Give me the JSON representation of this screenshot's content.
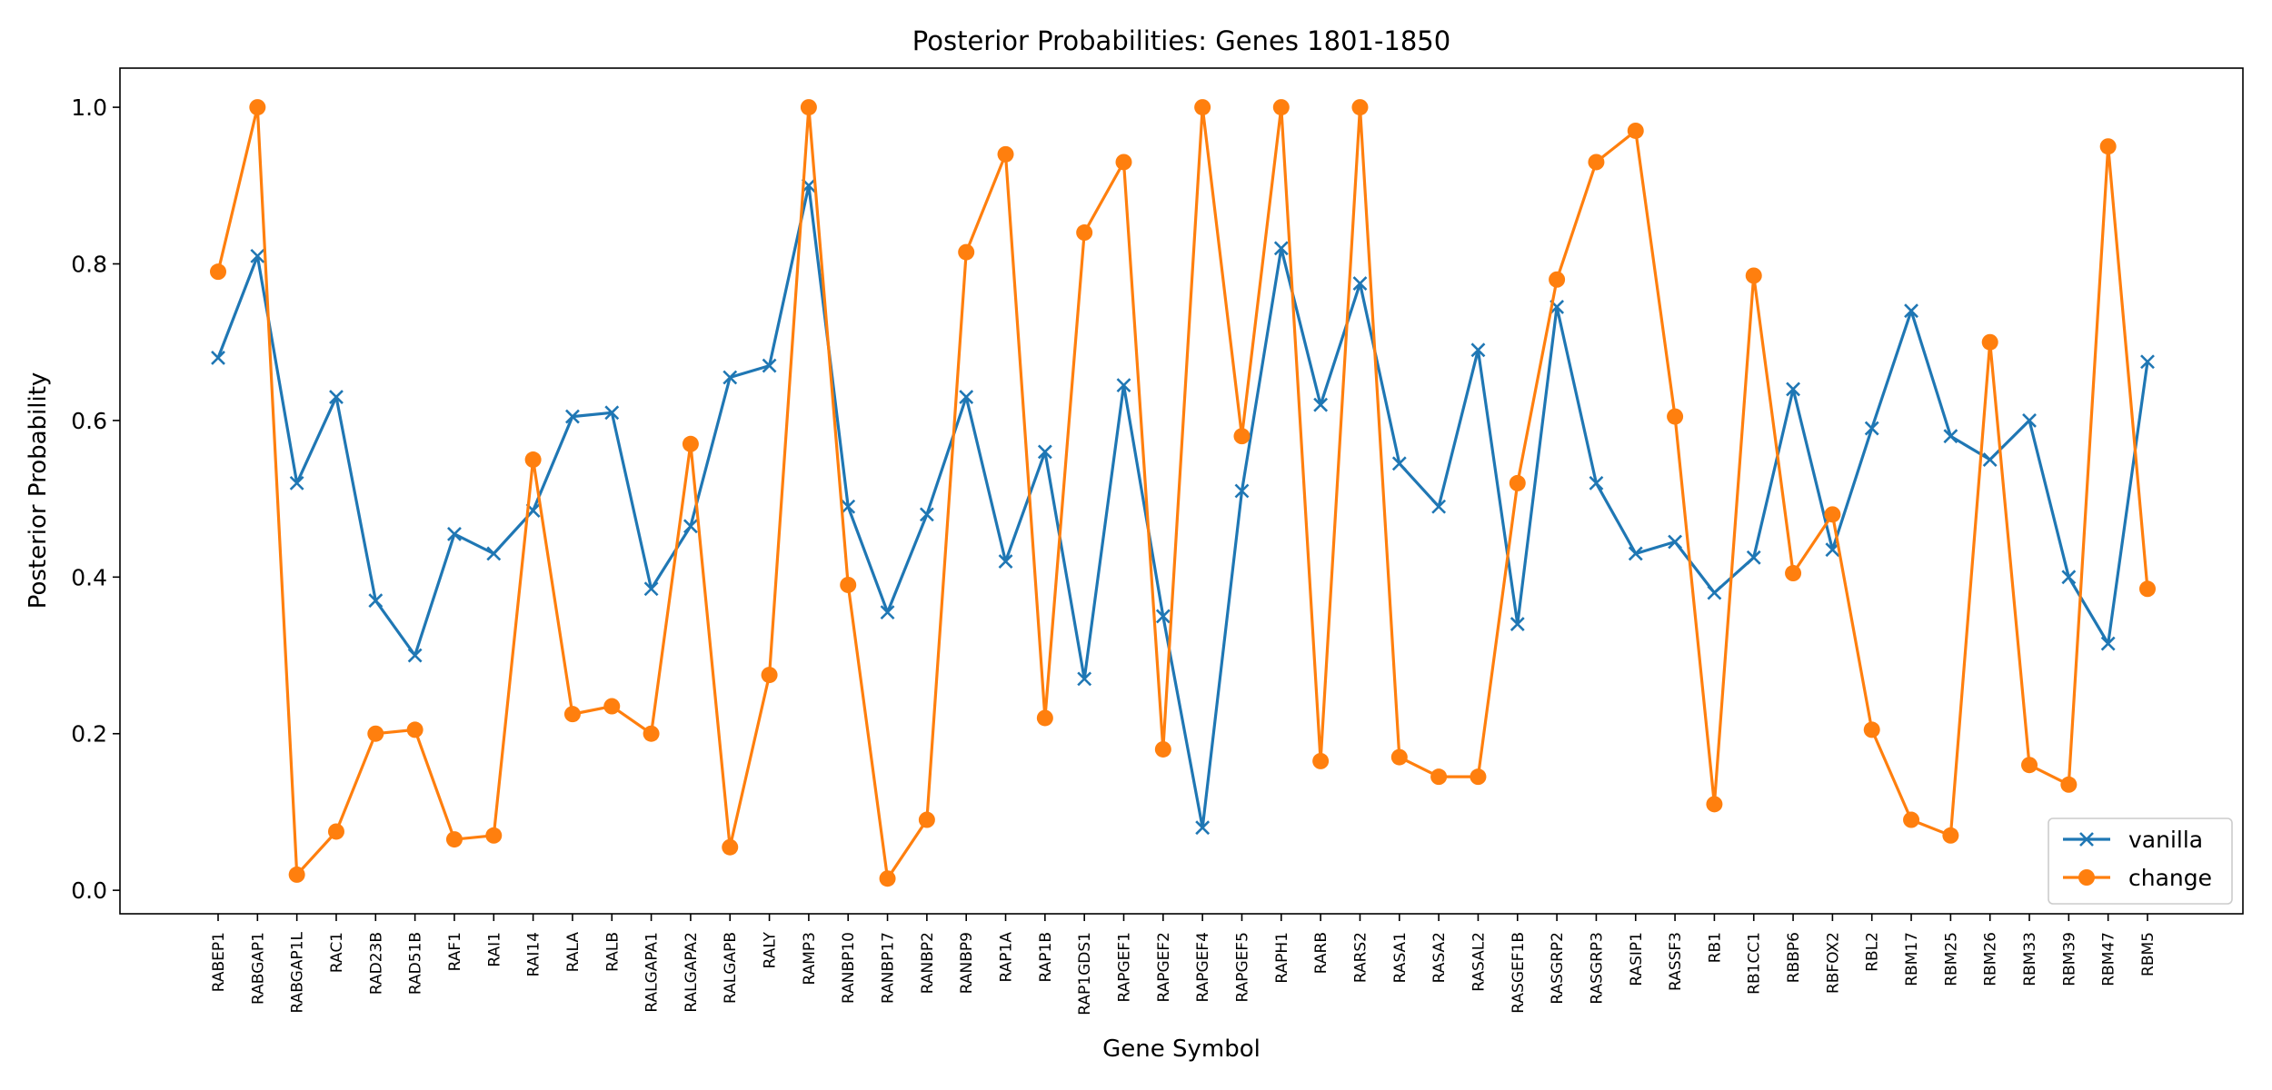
{
  "chart_data": {
    "type": "line",
    "title": "Posterior Probabilities: Genes 1801-1850",
    "xlabel": "Gene Symbol",
    "ylabel": "Posterior Probability",
    "ylim": [
      -0.03,
      1.05
    ],
    "yticks": [
      "0.0",
      "0.2",
      "0.4",
      "0.6",
      "0.8",
      "1.0"
    ],
    "grid": false,
    "legend_position": "lower right",
    "categories": [
      "RABEP1",
      "RABGAP1",
      "RABGAP1L",
      "RAC1",
      "RAD23B",
      "RAD51B",
      "RAF1",
      "RAI1",
      "RAI14",
      "RALA",
      "RALB",
      "RALGAPA1",
      "RALGAPA2",
      "RALGAPB",
      "RALY",
      "RAMP3",
      "RANBP10",
      "RANBP17",
      "RANBP2",
      "RANBP9",
      "RAP1A",
      "RAP1B",
      "RAP1GDS1",
      "RAPGEF1",
      "RAPGEF2",
      "RAPGEF4",
      "RAPGEF5",
      "RAPH1",
      "RARB",
      "RARS2",
      "RASA1",
      "RASA2",
      "RASAL2",
      "RASGEF1B",
      "RASGRP2",
      "RASGRP3",
      "RASIP1",
      "RASSF3",
      "RB1",
      "RB1CC1",
      "RBBP6",
      "RBFOX2",
      "RBL2",
      "RBM17",
      "RBM25",
      "RBM26",
      "RBM33",
      "RBM39",
      "RBM47",
      "RBM5"
    ],
    "series": [
      {
        "name": "vanilla",
        "color": "#1f77b4",
        "marker": "x",
        "values": [
          0.68,
          0.81,
          0.52,
          0.63,
          0.37,
          0.3,
          0.455,
          0.43,
          0.485,
          0.605,
          0.61,
          0.385,
          0.465,
          0.655,
          0.67,
          0.9,
          0.49,
          0.355,
          0.48,
          0.63,
          0.42,
          0.56,
          0.27,
          0.645,
          0.35,
          0.08,
          0.51,
          0.82,
          0.62,
          0.775,
          0.545,
          0.49,
          0.69,
          0.34,
          0.745,
          0.52,
          0.43,
          0.445,
          0.38,
          0.425,
          0.64,
          0.435,
          0.59,
          0.74,
          0.58,
          0.55,
          0.6,
          0.4,
          0.315,
          0.675
        ]
      },
      {
        "name": "change",
        "color": "#ff7f0e",
        "marker": "o",
        "values": [
          0.79,
          1.0,
          0.02,
          0.075,
          0.2,
          0.205,
          0.065,
          0.07,
          0.55,
          0.225,
          0.235,
          0.2,
          0.57,
          0.055,
          0.275,
          1.0,
          0.39,
          0.015,
          0.09,
          0.815,
          0.94,
          0.22,
          0.84,
          0.93,
          0.18,
          1.0,
          0.58,
          1.0,
          0.165,
          1.0,
          0.17,
          0.145,
          0.145,
          0.52,
          0.78,
          0.93,
          0.97,
          0.605,
          0.11,
          0.785,
          0.405,
          0.48,
          0.205,
          0.09,
          0.07,
          0.7,
          0.16,
          0.135,
          0.95,
          0.385
        ]
      }
    ]
  }
}
